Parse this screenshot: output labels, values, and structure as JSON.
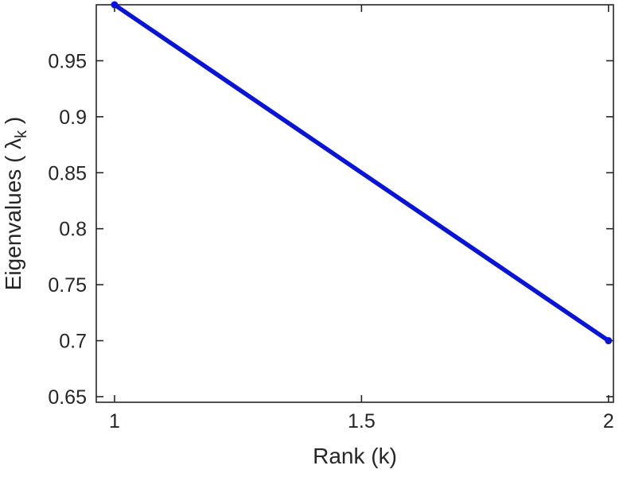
{
  "figure": {
    "background": "#ffffff"
  },
  "chart_data": {
    "type": "line",
    "title": "",
    "xlabel": "Rank (k)",
    "ylabel": "Eigenvalues ( λk )",
    "ylabel_parts": {
      "pre": "Eigenvalues ( λ",
      "sub": "k",
      "post": " )"
    },
    "x": [
      1,
      2
    ],
    "y": [
      1.0,
      0.7
    ],
    "xlim": [
      0.963,
      2.01
    ],
    "ylim": [
      0.645,
      1.0
    ],
    "xtick_values": [
      1,
      1.5,
      2
    ],
    "xtick_labels": [
      "1",
      "1.5",
      "2"
    ],
    "ytick_values": [
      0.65,
      0.7,
      0.75,
      0.8,
      0.85,
      0.9,
      0.95
    ],
    "ytick_labels": [
      "0.65",
      "0.7",
      "0.75",
      "0.8",
      "0.85",
      "0.9",
      "0.95"
    ],
    "grid": false,
    "legend_position": "none",
    "line_color": "#0a14d6",
    "axis_color": "#262626",
    "marker": "circle",
    "marker_radius": 4.5,
    "line_width": 5.5
  }
}
